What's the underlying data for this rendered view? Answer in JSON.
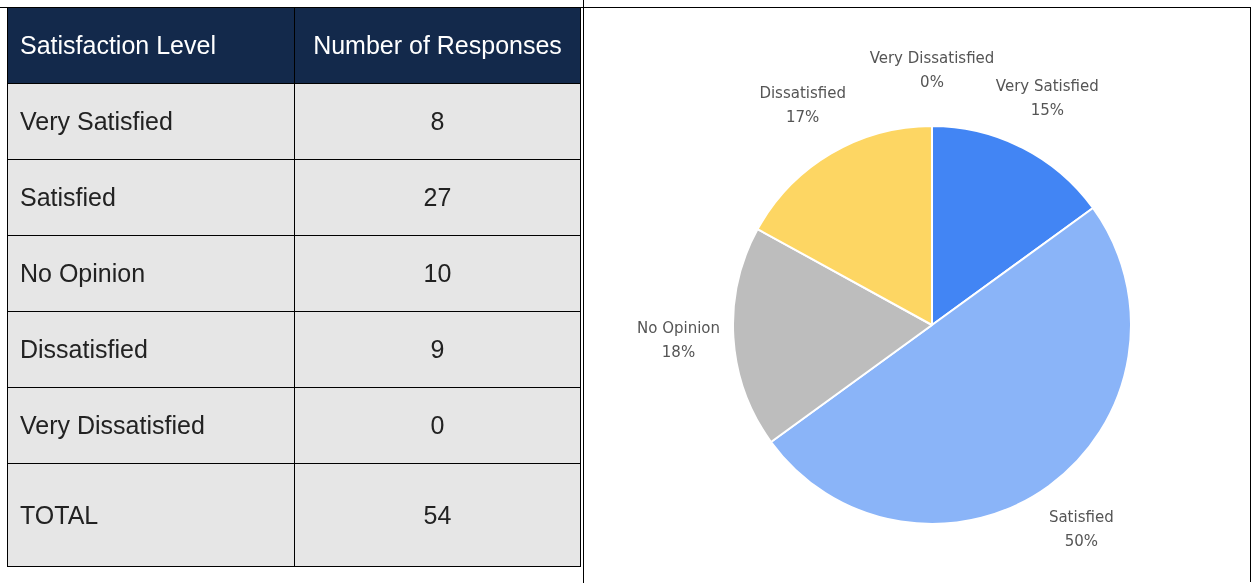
{
  "chart_data": [
    {
      "type": "other",
      "categories": [
        "Very Satisfied",
        "Satisfied",
        "No Opinion",
        "Dissatisfied",
        "Very Dissatisfied"
      ],
      "values": [
        8,
        27,
        10,
        9,
        0
      ],
      "data_labels": true,
      "totals": [
        "54"
      ],
      "annotations": [
        "Satisfaction Level",
        "Number of Responses",
        "TOTAL"
      ]
    },
    {
      "type": "pie",
      "categories": [
        "Very Satisfied",
        "Satisfied",
        "No Opinion",
        "Dissatisfied",
        "Very Dissatisfied"
      ],
      "values": [
        15,
        50,
        18,
        17,
        0
      ],
      "colors": [
        "#4285f4",
        "#8ab4f8",
        "#bdbdbd",
        "#fdd663",
        "#ea4335"
      ],
      "value_labels": [
        "15%",
        "50%",
        "18%",
        "17%",
        "0%"
      ]
    }
  ]
}
